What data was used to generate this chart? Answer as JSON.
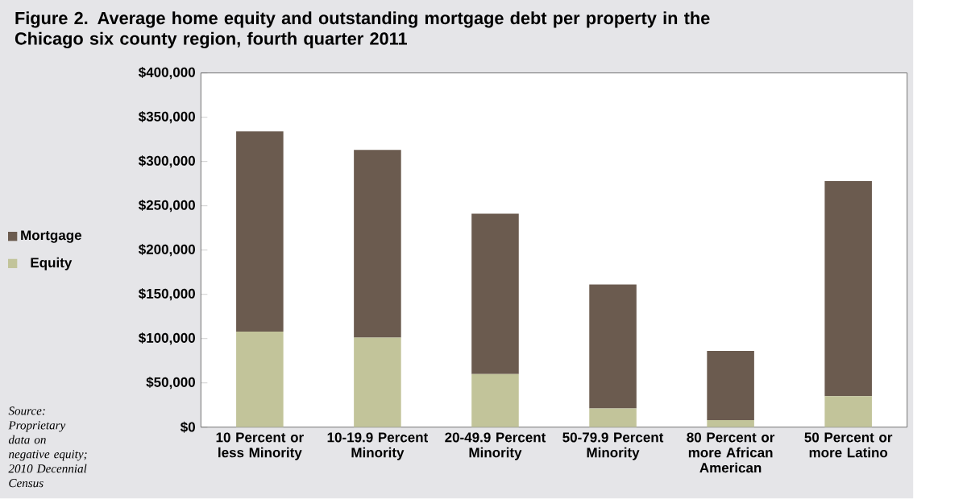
{
  "chart_data": {
    "type": "bar",
    "stacked": true,
    "title": "Figure 2. Average home equity and outstanding mortgage debt per property in the Chicago six county region, fourth quarter 2011",
    "categories": [
      "10 Percent or less Minority",
      "10-19.9 Percent Minority",
      "20-49.9 Percent Minority",
      "50-79.9 Percent Minority",
      "80 Percent or more African American",
      "50 Percent or more Latino"
    ],
    "series": [
      {
        "name": "Equity",
        "color": "#c2c49a",
        "values": [
          108000,
          101000,
          60000,
          21000,
          8000,
          35000
        ]
      },
      {
        "name": "Mortgage",
        "color": "#6b5b4f",
        "values": [
          226000,
          212000,
          181000,
          140000,
          78000,
          243000
        ]
      }
    ],
    "ylim": [
      0,
      400000
    ],
    "yticks": [
      {
        "value": 0,
        "label": "$0"
      },
      {
        "value": 50000,
        "label": "$50,000"
      },
      {
        "value": 100000,
        "label": "$100,000"
      },
      {
        "value": 150000,
        "label": "$150,000"
      },
      {
        "value": 200000,
        "label": "$200,000"
      },
      {
        "value": 250000,
        "label": "$250,000"
      },
      {
        "value": 300000,
        "label": "$300,000"
      },
      {
        "value": 350000,
        "label": "$350,000"
      },
      {
        "value": 400000,
        "label": "$400,000"
      }
    ],
    "grid": false,
    "legend": "left",
    "annotations": [
      "Source: Proprietary data on negative equity; 2010 Decennial Census"
    ]
  }
}
